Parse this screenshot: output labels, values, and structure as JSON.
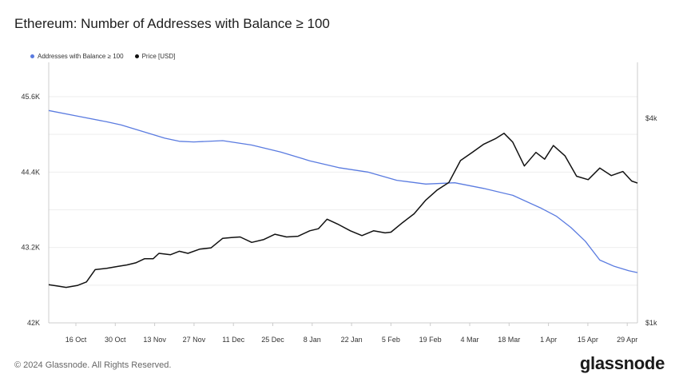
{
  "title": "Ethereum: Number of Addresses with Balance ≥ 100",
  "footer": "© 2024 Glassnode. All Rights Reserved.",
  "brand": "glassnode",
  "colors": {
    "addresses": "#5a7be0",
    "price": "#111111",
    "grid": "#eeeeee"
  },
  "chart_data": {
    "type": "line",
    "xlabel": "",
    "ylabel": "",
    "x_ticks": [
      "16 Oct",
      "30 Oct",
      "13 Nov",
      "27 Nov",
      "11 Dec",
      "25 Dec",
      "8 Jan",
      "22 Jan",
      "5 Feb",
      "19 Feb",
      "4 Mar",
      "18 Mar",
      "1 Apr",
      "15 Apr",
      "29 Apr"
    ],
    "y_left_ticks": [
      "42K",
      "43.2K",
      "44.4K",
      "45.6K"
    ],
    "y_right_ticks": [
      "$1k",
      "$4k"
    ],
    "y_left_range": [
      42000,
      45600
    ],
    "y_right_range": [
      1000,
      4000
    ],
    "x_range_days": [
      0,
      203
    ],
    "legend_position": "top-left",
    "grid": true,
    "series": [
      {
        "name": "Addresses with Balance ≥ 100",
        "axis": "left",
        "points": [
          [
            0,
            45380
          ],
          [
            10,
            45290
          ],
          [
            20,
            45200
          ],
          [
            25,
            45150
          ],
          [
            30,
            45080
          ],
          [
            35,
            45010
          ],
          [
            40,
            44940
          ],
          [
            45,
            44890
          ],
          [
            50,
            44880
          ],
          [
            60,
            44900
          ],
          [
            70,
            44830
          ],
          [
            80,
            44720
          ],
          [
            90,
            44580
          ],
          [
            100,
            44470
          ],
          [
            110,
            44400
          ],
          [
            120,
            44270
          ],
          [
            130,
            44210
          ],
          [
            140,
            44230
          ],
          [
            150,
            44140
          ],
          [
            160,
            44030
          ],
          [
            170,
            43820
          ],
          [
            175,
            43700
          ],
          [
            180,
            43520
          ],
          [
            185,
            43300
          ],
          [
            190,
            43000
          ],
          [
            195,
            42900
          ],
          [
            200,
            42830
          ],
          [
            203,
            42800
          ]
        ]
      },
      {
        "name": "Price [USD]",
        "axis": "right",
        "points": [
          [
            0,
            1560
          ],
          [
            3,
            1540
          ],
          [
            6,
            1520
          ],
          [
            10,
            1550
          ],
          [
            13,
            1600
          ],
          [
            16,
            1780
          ],
          [
            20,
            1800
          ],
          [
            24,
            1830
          ],
          [
            27,
            1850
          ],
          [
            30,
            1880
          ],
          [
            33,
            1940
          ],
          [
            36,
            1940
          ],
          [
            38,
            2020
          ],
          [
            42,
            2000
          ],
          [
            45,
            2050
          ],
          [
            48,
            2020
          ],
          [
            52,
            2080
          ],
          [
            56,
            2100
          ],
          [
            60,
            2240
          ],
          [
            63,
            2250
          ],
          [
            66,
            2260
          ],
          [
            70,
            2180
          ],
          [
            74,
            2220
          ],
          [
            78,
            2300
          ],
          [
            82,
            2260
          ],
          [
            86,
            2270
          ],
          [
            90,
            2350
          ],
          [
            93,
            2380
          ],
          [
            96,
            2520
          ],
          [
            100,
            2440
          ],
          [
            104,
            2350
          ],
          [
            108,
            2280
          ],
          [
            112,
            2350
          ],
          [
            116,
            2320
          ],
          [
            118,
            2330
          ],
          [
            122,
            2470
          ],
          [
            126,
            2600
          ],
          [
            130,
            2800
          ],
          [
            134,
            2950
          ],
          [
            138,
            3060
          ],
          [
            142,
            3380
          ],
          [
            146,
            3500
          ],
          [
            150,
            3620
          ],
          [
            154,
            3700
          ],
          [
            157,
            3780
          ],
          [
            160,
            3650
          ],
          [
            164,
            3300
          ],
          [
            168,
            3500
          ],
          [
            171,
            3400
          ],
          [
            174,
            3600
          ],
          [
            178,
            3450
          ],
          [
            182,
            3150
          ],
          [
            186,
            3100
          ],
          [
            190,
            3270
          ],
          [
            194,
            3160
          ],
          [
            198,
            3220
          ],
          [
            201,
            3080
          ],
          [
            203,
            3050
          ]
        ]
      }
    ]
  }
}
